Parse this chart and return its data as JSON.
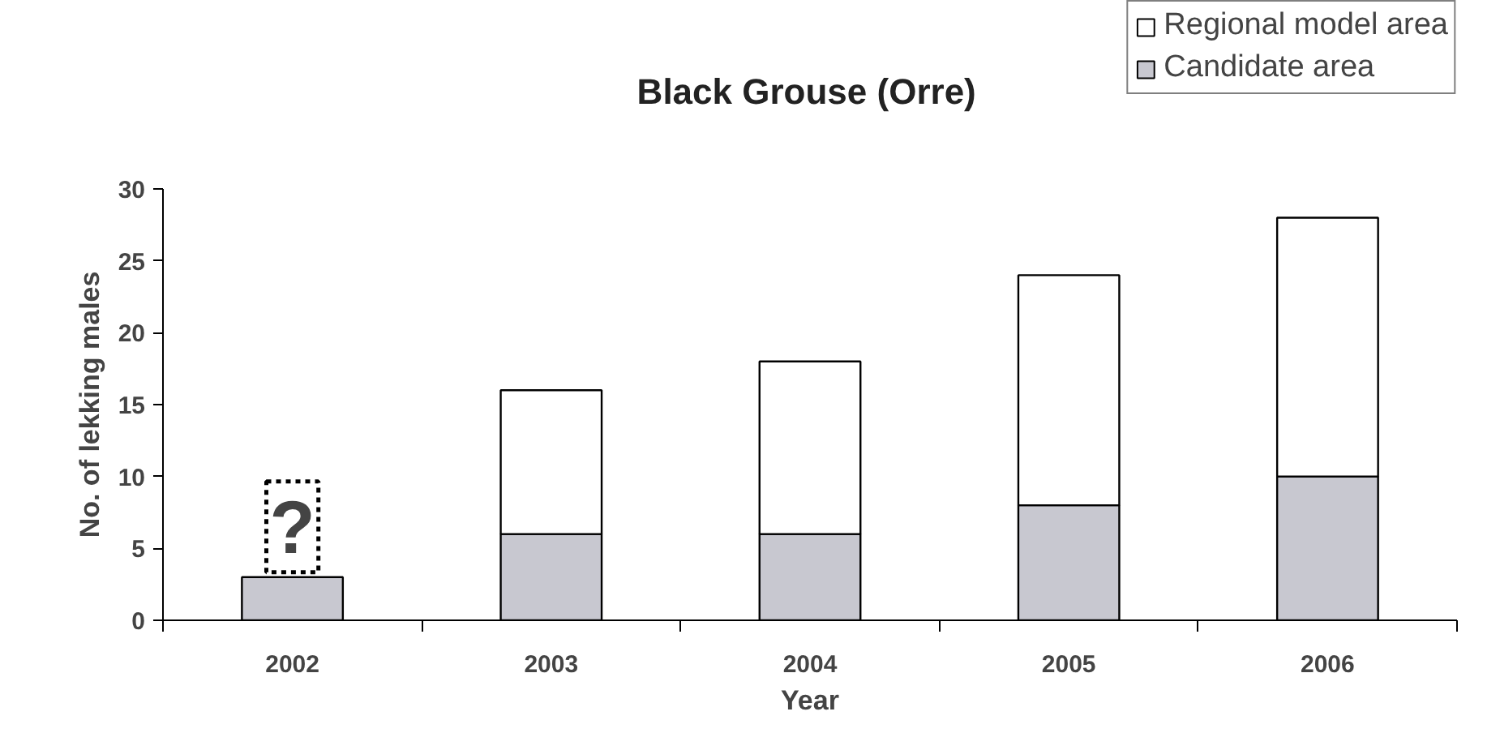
{
  "chart_data": {
    "type": "bar",
    "title": "Black Grouse (Orre)",
    "xlabel": "Year",
    "ylabel": "No. of lekking males",
    "categories": [
      "2002",
      "2003",
      "2004",
      "2005",
      "2006"
    ],
    "stacked": true,
    "series": [
      {
        "name": "Candidate area",
        "color": "#c8c8d0",
        "values": [
          3,
          6,
          6,
          8,
          10
        ]
      },
      {
        "name": "Regional model area",
        "color": "#ffffff",
        "values": [
          null,
          10,
          12,
          16,
          18
        ]
      }
    ],
    "annotations": [
      "?"
    ],
    "ylim": [
      0,
      30
    ],
    "yticks": [
      0,
      5,
      10,
      15,
      20,
      25,
      30
    ],
    "grid": false,
    "legend": "top right"
  }
}
